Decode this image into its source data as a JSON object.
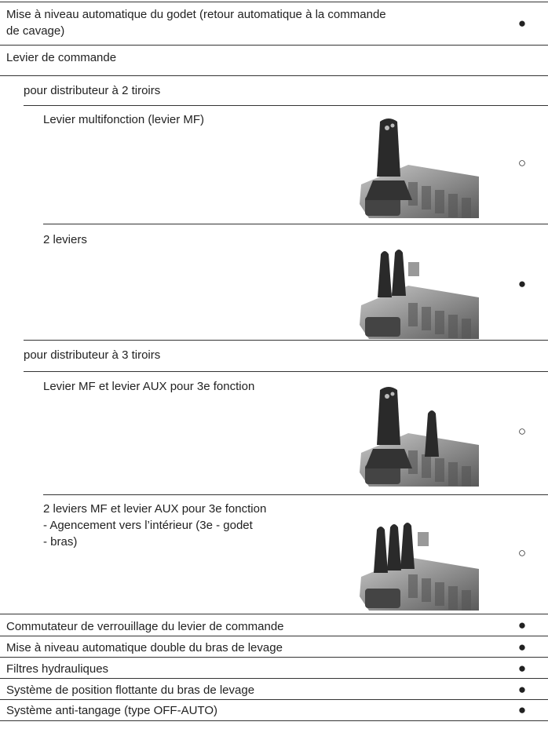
{
  "rows": [
    {
      "lines": [
        "Mise à niveau automatique du godet (retour automatique à la commande",
        "de cavage)"
      ],
      "mark": "●"
    },
    {
      "lines": [
        "Levier de commande"
      ]
    },
    {
      "lines": [
        "pour distributeur à 2 tiroirs"
      ]
    },
    {
      "lines": [
        "Levier multifonction (levier MF)"
      ],
      "mark": "○"
    },
    {
      "lines": [
        "2 leviers"
      ],
      "mark": "●"
    },
    {
      "lines": [
        "pour distributeur à 3 tiroirs"
      ]
    },
    {
      "lines": [
        "Levier MF et levier AUX pour 3e fonction"
      ],
      "mark": "○"
    },
    {
      "lines": [
        "2 leviers MF et levier AUX pour 3e fonction",
        "- Agencement vers l’intérieur (3e - godet",
        "- bras)"
      ],
      "mark": "○"
    },
    {
      "lines": [
        "Commutateur de verrouillage du levier de commande"
      ],
      "mark": "●"
    },
    {
      "lines": [
        "Mise à niveau automatique double du bras de levage"
      ],
      "mark": "●"
    },
    {
      "lines": [
        "Filtres hydrauliques"
      ],
      "mark": "●"
    },
    {
      "lines": [
        "Système de position flottante du bras de levage"
      ],
      "mark": "●"
    },
    {
      "lines": [
        "Système anti-tangage (type OFF-AUTO)"
      ],
      "mark": "●"
    }
  ]
}
